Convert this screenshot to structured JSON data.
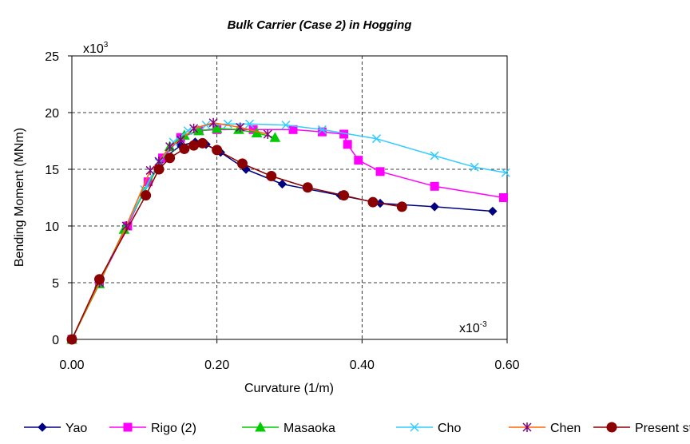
{
  "chart_data": {
    "type": "line",
    "title": "Bulk Carrier (Case 2) in Hogging",
    "xlabel": "Curvature (1/m)",
    "ylabel": "Bending Moment (MNm)",
    "x_multiplier_base": "x10",
    "x_multiplier_exp": "-3",
    "y_multiplier_base": "x10",
    "y_multiplier_exp": "3",
    "xlim": [
      0,
      0.6
    ],
    "ylim": [
      0,
      25
    ],
    "x_ticks": [
      "0.00",
      "0.20",
      "0.40",
      "0.60"
    ],
    "y_ticks": [
      "0",
      "5",
      "10",
      "15",
      "20",
      "25"
    ],
    "grid": true,
    "legend_position": "bottom",
    "series": [
      {
        "name": "Yao",
        "color": "#000080",
        "marker": "diamond",
        "x": [
          0.0,
          0.038,
          0.075,
          0.105,
          0.125,
          0.15,
          0.17,
          0.185,
          0.205,
          0.24,
          0.29,
          0.37,
          0.425,
          0.5,
          0.58
        ],
        "y": [
          0.0,
          5.1,
          10.0,
          13.8,
          15.9,
          17.1,
          17.4,
          17.2,
          16.5,
          15.0,
          13.7,
          12.7,
          12.0,
          11.7,
          11.3
        ]
      },
      {
        "name": "Rigo (2)",
        "color": "#FF00FF",
        "marker": "square",
        "x": [
          0.0,
          0.038,
          0.077,
          0.105,
          0.125,
          0.15,
          0.175,
          0.2,
          0.25,
          0.305,
          0.345,
          0.375,
          0.38,
          0.395,
          0.425,
          0.5,
          0.595
        ],
        "y": [
          0.0,
          5.0,
          10.0,
          13.9,
          16.0,
          17.8,
          18.4,
          18.5,
          18.5,
          18.5,
          18.3,
          18.1,
          17.2,
          15.8,
          14.8,
          13.5,
          12.5
        ]
      },
      {
        "name": "Masaoka",
        "color": "#00CC00",
        "marker": "triangle",
        "x": [
          0.0,
          0.038,
          0.072,
          0.1,
          0.12,
          0.135,
          0.155,
          0.175,
          0.2,
          0.23,
          0.255,
          0.28
        ],
        "y": [
          0.0,
          4.9,
          9.7,
          13.0,
          15.4,
          17.0,
          18.0,
          18.4,
          18.6,
          18.5,
          18.2,
          17.8
        ]
      },
      {
        "name": "Cho",
        "color": "#33CCFF",
        "marker": "x",
        "x": [
          0.0,
          0.038,
          0.075,
          0.1,
          0.12,
          0.14,
          0.16,
          0.185,
          0.215,
          0.245,
          0.295,
          0.345,
          0.42,
          0.5,
          0.555,
          0.598
        ],
        "y": [
          0.0,
          5.0,
          10.0,
          13.2,
          15.6,
          17.4,
          18.4,
          18.9,
          19.0,
          19.0,
          18.9,
          18.5,
          17.7,
          16.2,
          15.2,
          14.7
        ]
      },
      {
        "name": "Chen",
        "color": "#FF6600",
        "marker": "star",
        "marker_color": "#800080",
        "x": [
          0.0,
          0.038,
          0.075,
          0.108,
          0.12,
          0.135,
          0.15,
          0.168,
          0.195,
          0.232,
          0.27
        ],
        "y": [
          0.0,
          5.0,
          10.0,
          14.9,
          15.7,
          17.0,
          17.6,
          18.6,
          19.1,
          18.7,
          18.1
        ]
      },
      {
        "name": "Present study",
        "color": "#8B0000",
        "marker": "circle",
        "x": [
          0.0,
          0.038,
          0.102,
          0.12,
          0.135,
          0.155,
          0.168,
          0.18,
          0.2,
          0.235,
          0.275,
          0.325,
          0.375,
          0.415,
          0.455
        ],
        "y": [
          0.0,
          5.3,
          12.7,
          15.0,
          16.0,
          16.8,
          17.1,
          17.3,
          16.7,
          15.5,
          14.4,
          13.4,
          12.7,
          12.1,
          11.7
        ]
      }
    ]
  }
}
